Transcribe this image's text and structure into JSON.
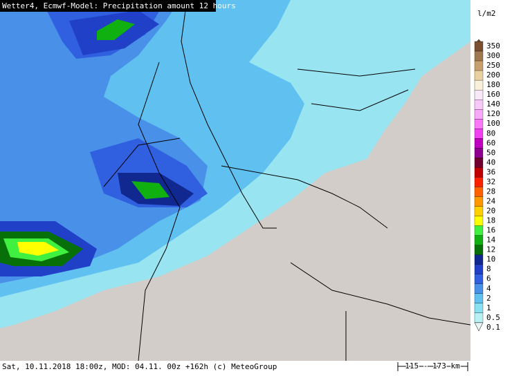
{
  "header": {
    "title": "Wetter4, Ecmwf-Model: Precipitation amount 12 hours"
  },
  "legend": {
    "unit": "l/m2",
    "items": [
      {
        "label": "350",
        "color": "#7a5030"
      },
      {
        "label": "300",
        "color": "#a07850"
      },
      {
        "label": "250",
        "color": "#c8a070"
      },
      {
        "label": "200",
        "color": "#e8d0a0"
      },
      {
        "label": "180",
        "color": "#f8f0d8"
      },
      {
        "label": "160",
        "color": "#f8e8f8"
      },
      {
        "label": "140",
        "color": "#f8c8f8"
      },
      {
        "label": "120",
        "color": "#f8a8f8"
      },
      {
        "label": "100",
        "color": "#f878f8"
      },
      {
        "label": "80",
        "color": "#f040f0"
      },
      {
        "label": "60",
        "color": "#c000c0"
      },
      {
        "label": "50",
        "color": "#900090"
      },
      {
        "label": "40",
        "color": "#700030"
      },
      {
        "label": "36",
        "color": "#c00000"
      },
      {
        "label": "32",
        "color": "#ff2000"
      },
      {
        "label": "28",
        "color": "#ff6000"
      },
      {
        "label": "24",
        "color": "#ff9800"
      },
      {
        "label": "20",
        "color": "#ffd000"
      },
      {
        "label": "18",
        "color": "#ffff00"
      },
      {
        "label": "16",
        "color": "#40f040"
      },
      {
        "label": "14",
        "color": "#10b010"
      },
      {
        "label": "12",
        "color": "#087008"
      },
      {
        "label": "10",
        "color": "#102890"
      },
      {
        "label": "8",
        "color": "#2040c8"
      },
      {
        "label": "6",
        "color": "#3060e0"
      },
      {
        "label": "4",
        "color": "#4890e8"
      },
      {
        "label": "2",
        "color": "#60c0f0"
      },
      {
        "label": "1",
        "color": "#88e0f0"
      },
      {
        "label": "0.5",
        "color": "#b8f0f4"
      },
      {
        "label": "0.1",
        "color": "#e8f4f6"
      }
    ]
  },
  "footer": {
    "info": "Sat, 10.11.2018 18:00z, MOD: 04.11. 00z +162h (c) MeteoGroup",
    "scale": "115 - 173 km"
  }
}
